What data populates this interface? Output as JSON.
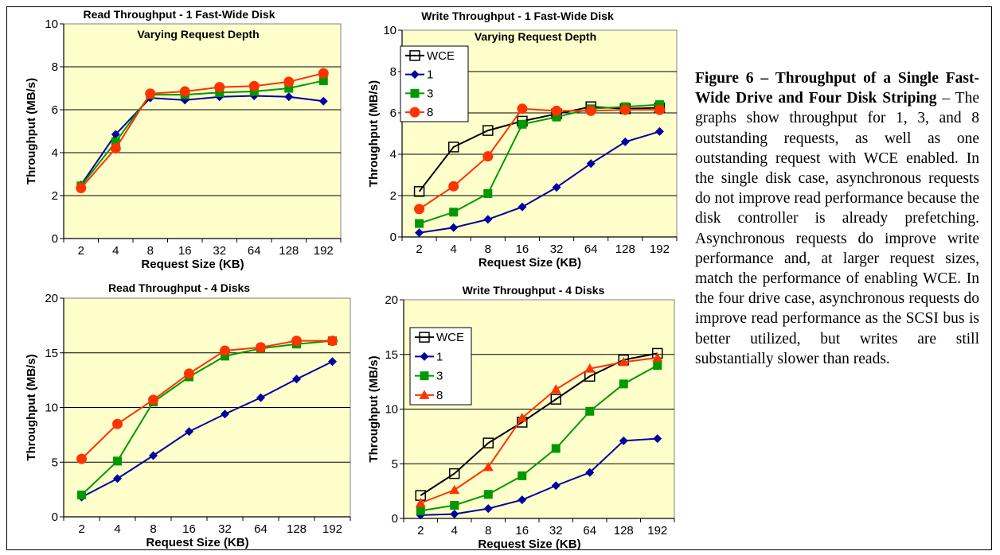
{
  "caption": {
    "label": "Figure 6 – Throughput of a Single Fast-Wide Drive and Four Disk Striping",
    "text": " – The graphs show throughput for 1, 3, and 8 outstanding requests, as well as one outstanding request with WCE enabled. In the single disk case, asynchronous requests do not improve read performance because the disk controller is already prefetching. Asynchronous requests do improve write performance and, at larger request sizes, match the performance of enabling WCE. In the four drive case, asynchronous requests do improve read performance as the SCSI bus is better utilized, but writes are still substantially slower than reads."
  },
  "colors": {
    "plot_bg": "#FFFFCC",
    "wce": "#000000",
    "s1": "#0000A0",
    "s3": "#009900",
    "s8_circle": "#FF3300",
    "s8_tri": "#FF3300"
  },
  "chart_data": [
    {
      "type": "line",
      "title": "Read Throughput - 1 Fast-Wide Disk",
      "subtitle": "Varying Request Depth",
      "xlabel": "Request Size (KB)",
      "ylabel": "Throughput (MB/s)",
      "categories": [
        "2",
        "4",
        "8",
        "16",
        "32",
        "64",
        "128",
        "192"
      ],
      "ylim": [
        0,
        10
      ],
      "yticks": [
        0,
        2,
        4,
        6,
        8,
        10
      ],
      "grid": true,
      "legend": "none",
      "series": [
        {
          "key": "s1",
          "marker": "diamond",
          "values": [
            2.5,
            4.85,
            6.55,
            6.45,
            6.6,
            6.65,
            6.6,
            6.4
          ]
        },
        {
          "key": "s3",
          "marker": "square",
          "values": [
            2.45,
            4.5,
            6.7,
            6.7,
            6.8,
            6.85,
            7.0,
            7.35
          ]
        },
        {
          "key": "s8_circle",
          "marker": "circle",
          "values": [
            2.35,
            4.2,
            6.75,
            6.85,
            7.05,
            7.1,
            7.3,
            7.7
          ]
        }
      ]
    },
    {
      "type": "line",
      "title": "Write Throughput - 1 Fast-Wide Disk",
      "subtitle": "Varying Request Depth",
      "xlabel": "Request Size (KB)",
      "ylabel": "Throughput (MB/s)",
      "categories": [
        "2",
        "4",
        "8",
        "16",
        "32",
        "64",
        "128",
        "192"
      ],
      "ylim": [
        0,
        10
      ],
      "yticks": [
        0,
        2,
        4,
        6,
        8,
        10
      ],
      "grid": true,
      "legend": "top-left",
      "series": [
        {
          "name": "WCE",
          "key": "wce",
          "marker": "open-square",
          "values": [
            2.2,
            4.35,
            5.15,
            5.6,
            5.95,
            6.3,
            6.2,
            6.25
          ]
        },
        {
          "name": "1",
          "key": "s1",
          "marker": "diamond",
          "values": [
            0.2,
            0.45,
            0.85,
            1.45,
            2.4,
            3.55,
            4.6,
            5.1
          ]
        },
        {
          "name": "3",
          "key": "s3",
          "marker": "square",
          "values": [
            0.65,
            1.2,
            2.1,
            5.45,
            5.8,
            6.2,
            6.3,
            6.4
          ]
        },
        {
          "name": "8",
          "key": "s8_circle",
          "marker": "circle",
          "values": [
            1.35,
            2.45,
            3.9,
            6.2,
            6.1,
            6.1,
            6.15,
            6.15
          ]
        }
      ]
    },
    {
      "type": "line",
      "title": "Read Throughput - 4 Disks",
      "xlabel": "Request Size (KB)",
      "ylabel": "Throughput (MB/s)",
      "categories": [
        "2",
        "4",
        "8",
        "16",
        "32",
        "64",
        "128",
        "192"
      ],
      "ylim": [
        0,
        20
      ],
      "yticks": [
        0,
        5,
        10,
        15,
        20
      ],
      "grid": true,
      "legend": "none",
      "series": [
        {
          "key": "s1",
          "marker": "diamond",
          "values": [
            1.8,
            3.5,
            5.6,
            7.8,
            9.4,
            10.9,
            12.6,
            14.2
          ]
        },
        {
          "key": "s3",
          "marker": "square",
          "values": [
            2.0,
            5.1,
            10.5,
            12.8,
            14.7,
            15.4,
            15.8,
            16.1
          ]
        },
        {
          "key": "s8_circle",
          "marker": "circle",
          "values": [
            5.3,
            8.5,
            10.7,
            13.1,
            15.2,
            15.5,
            16.1,
            16.1
          ]
        }
      ]
    },
    {
      "type": "line",
      "title": "Write Throughput - 4 Disks",
      "xlabel": "Request Size (KB)",
      "ylabel": "Throughput (MB/s)",
      "categories": [
        "2",
        "4",
        "8",
        "16",
        "32",
        "64",
        "128",
        "192"
      ],
      "ylim": [
        0,
        20
      ],
      "yticks": [
        0,
        5,
        10,
        15,
        20
      ],
      "grid": true,
      "legend": "top-left",
      "series": [
        {
          "name": "WCE",
          "key": "wce",
          "marker": "open-square",
          "values": [
            2.1,
            4.1,
            6.9,
            8.8,
            10.9,
            13.0,
            14.5,
            15.1
          ]
        },
        {
          "name": "1",
          "key": "s1",
          "marker": "diamond",
          "values": [
            0.3,
            0.4,
            0.9,
            1.7,
            3.0,
            4.2,
            7.1,
            7.3
          ]
        },
        {
          "name": "3",
          "key": "s3",
          "marker": "square",
          "values": [
            0.7,
            1.2,
            2.2,
            3.9,
            6.4,
            9.8,
            12.3,
            14.0
          ]
        },
        {
          "name": "8",
          "key": "s8_tri",
          "marker": "triangle",
          "values": [
            1.4,
            2.6,
            4.7,
            9.2,
            11.8,
            13.7,
            14.3,
            14.7
          ]
        }
      ]
    }
  ]
}
